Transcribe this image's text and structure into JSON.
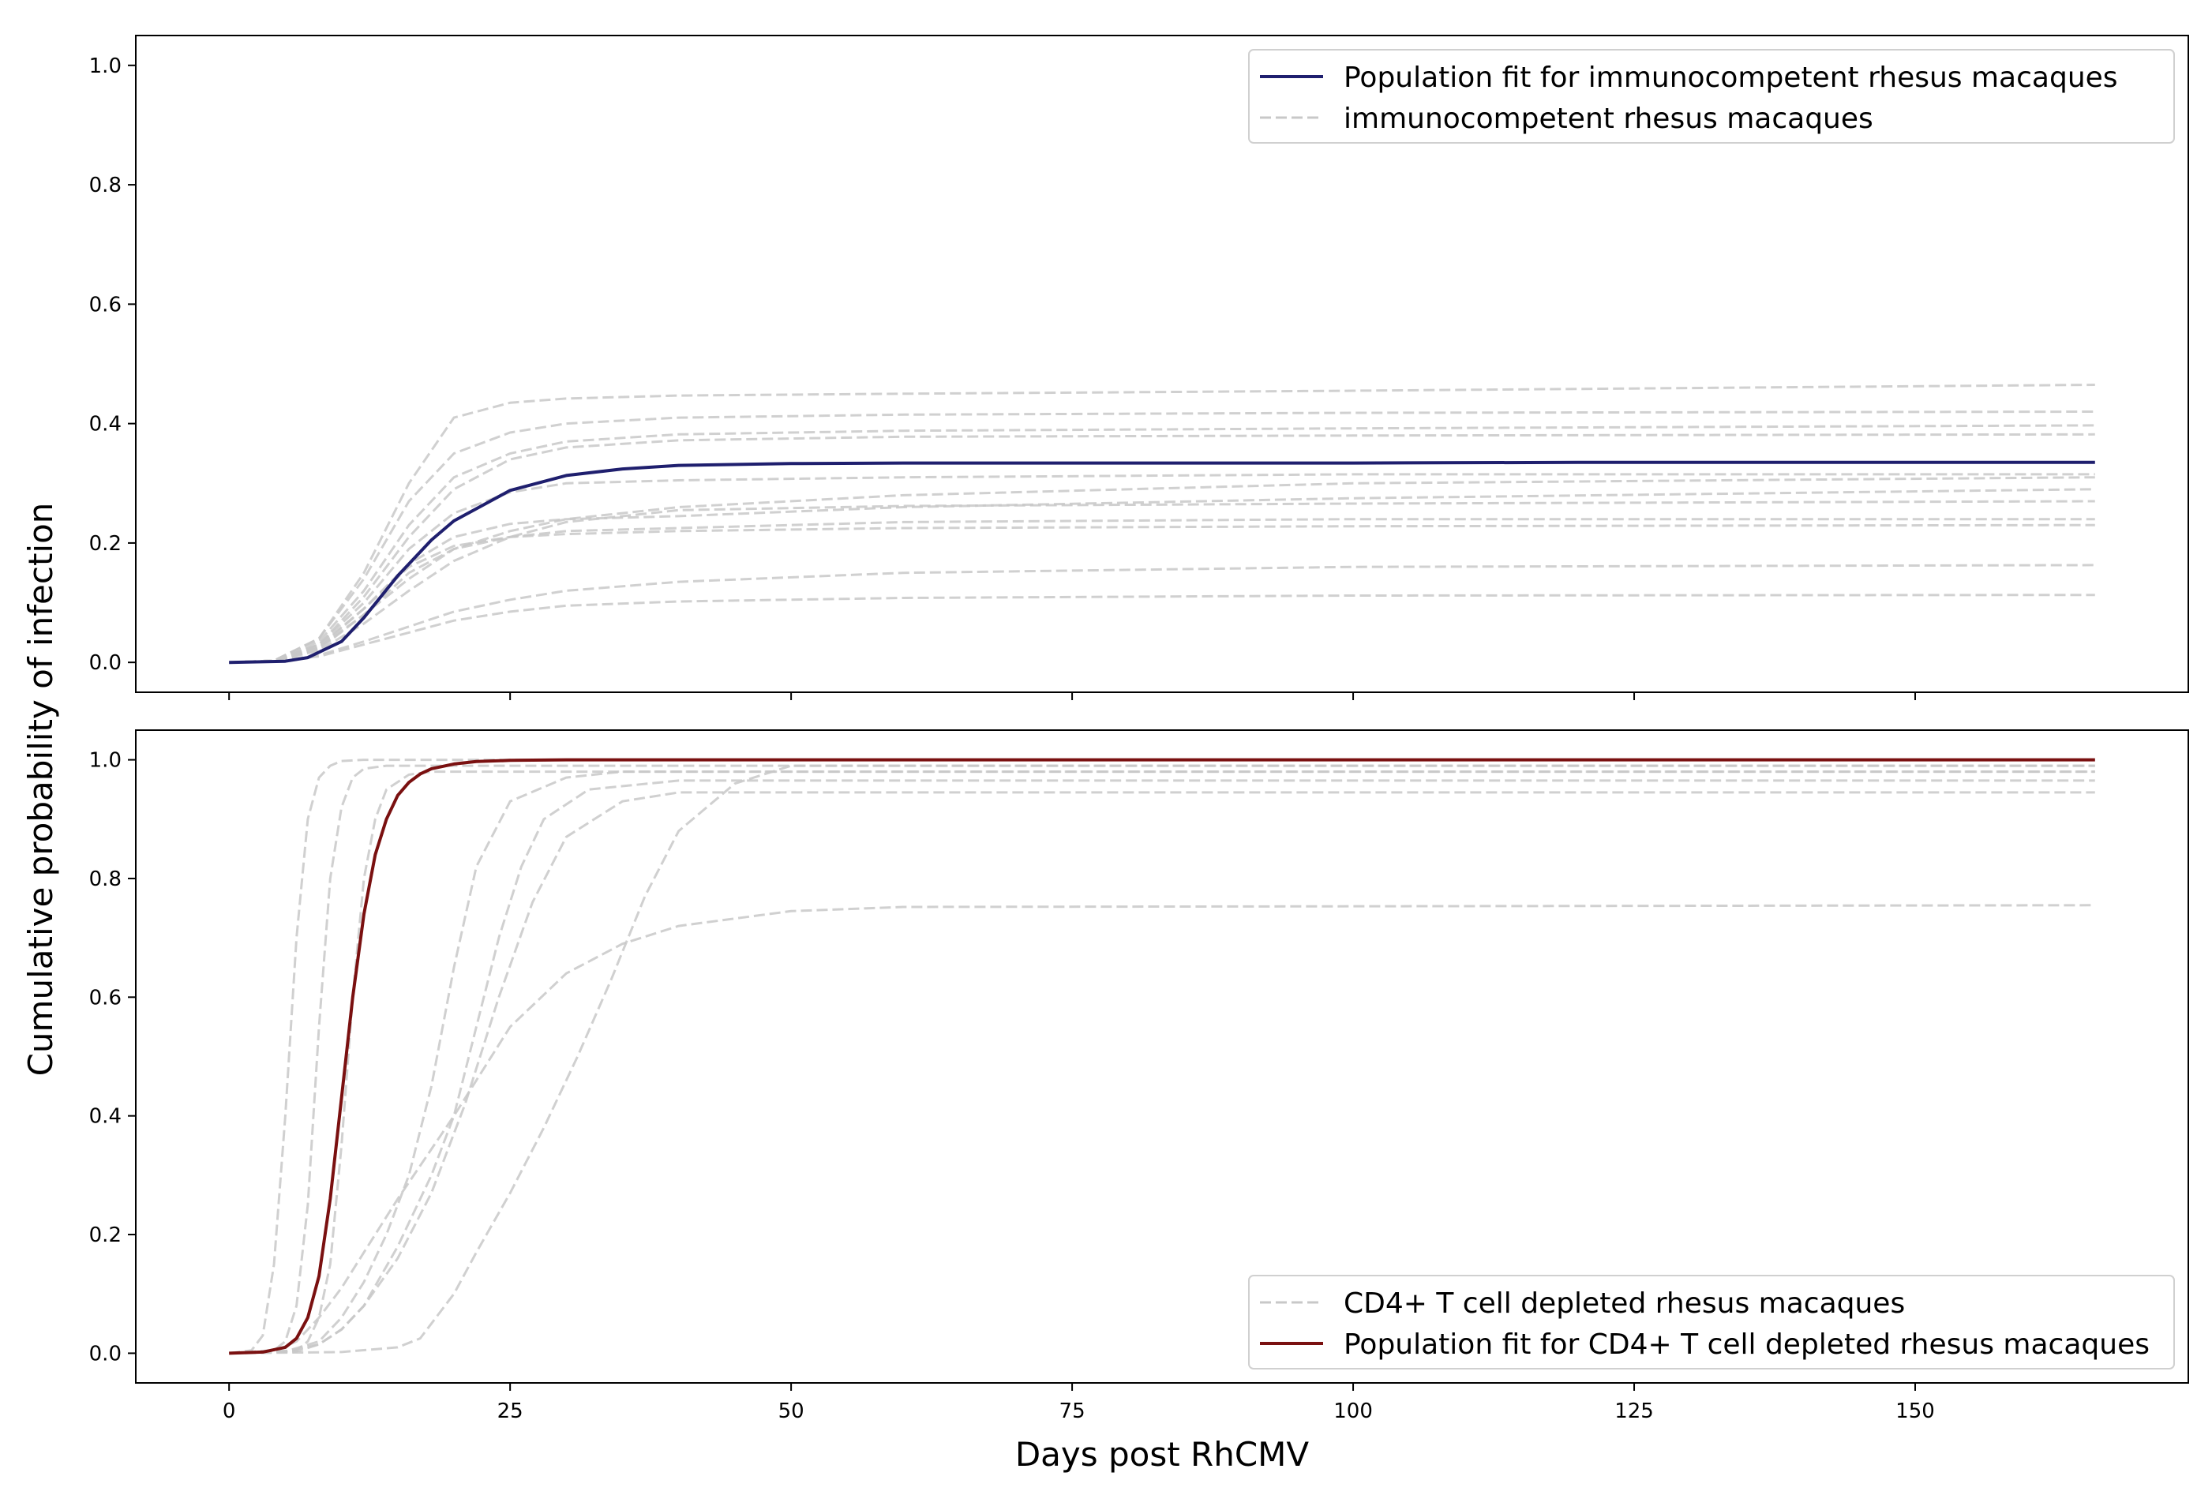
{
  "chart_data": {
    "type": "line",
    "xlabel": "Days post RhCMV",
    "ylabel": "Cumulative probability of infection",
    "xlim": [
      -8.3,
      174.3
    ],
    "xticks": [
      0,
      25,
      50,
      75,
      100,
      125,
      150
    ],
    "colors": {
      "individual": "#c8c8c8",
      "immunocompetent_fit": "#1f1f6e",
      "depleted_fit": "#7a1010"
    },
    "panels": [
      {
        "id": "top",
        "ylim": [
          -0.05,
          1.05
        ],
        "yticks": [
          0.0,
          0.2,
          0.4,
          0.6,
          0.8,
          1.0
        ],
        "legend_position": "upper right",
        "legend": [
          "Population fit for immunocompetent rhesus macaques",
          "immunocompetent rhesus macaques"
        ],
        "fit": {
          "name": "Population fit for immunocompetent rhesus macaques",
          "x": [
            0,
            5,
            7,
            10,
            12,
            15,
            18,
            20,
            25,
            30,
            35,
            40,
            50,
            60,
            80,
            100,
            120,
            140,
            166
          ],
          "y": [
            0,
            0.002,
            0.008,
            0.035,
            0.075,
            0.145,
            0.205,
            0.237,
            0.288,
            0.313,
            0.324,
            0.33,
            0.333,
            0.334,
            0.334,
            0.334,
            0.335,
            0.335,
            0.335
          ]
        },
        "individual_series_name": "immunocompetent rhesus macaques",
        "individuals": [
          {
            "x": [
              0,
              4,
              8,
              12,
              16,
              20,
              25,
              30,
              40,
              60,
              100,
              166
            ],
            "y": [
              0,
              0.003,
              0.04,
              0.15,
              0.3,
              0.41,
              0.435,
              0.442,
              0.447,
              0.45,
              0.455,
              0.465
            ]
          },
          {
            "x": [
              0,
              4,
              8,
              12,
              16,
              20,
              25,
              30,
              40,
              60,
              100,
              166
            ],
            "y": [
              0,
              0.003,
              0.04,
              0.14,
              0.27,
              0.35,
              0.385,
              0.4,
              0.41,
              0.415,
              0.418,
              0.42
            ]
          },
          {
            "x": [
              0,
              4,
              8,
              12,
              16,
              20,
              25,
              30,
              40,
              60,
              100,
              166
            ],
            "y": [
              0,
              0.003,
              0.035,
              0.12,
              0.23,
              0.31,
              0.35,
              0.37,
              0.382,
              0.388,
              0.392,
              0.397
            ]
          },
          {
            "x": [
              0,
              4,
              8,
              12,
              16,
              20,
              25,
              30,
              40,
              60,
              100,
              166
            ],
            "y": [
              0,
              0.003,
              0.03,
              0.11,
              0.21,
              0.29,
              0.34,
              0.36,
              0.372,
              0.378,
              0.38,
              0.382
            ]
          },
          {
            "x": [
              0,
              4,
              8,
              12,
              16,
              20,
              25,
              30,
              40,
              60,
              100,
              166
            ],
            "y": [
              0,
              0.003,
              0.03,
              0.1,
              0.19,
              0.25,
              0.285,
              0.3,
              0.305,
              0.31,
              0.315,
              0.315
            ]
          },
          {
            "x": [
              0,
              4,
              8,
              12,
              16,
              20,
              25,
              30,
              40,
              60,
              100,
              166
            ],
            "y": [
              0,
              0.003,
              0.025,
              0.08,
              0.14,
              0.19,
              0.22,
              0.24,
              0.26,
              0.28,
              0.3,
              0.31
            ]
          },
          {
            "x": [
              0,
              4,
              8,
              12,
              16,
              20,
              25,
              30,
              40,
              60,
              100,
              166
            ],
            "y": [
              0,
              0.003,
              0.028,
              0.09,
              0.165,
              0.21,
              0.232,
              0.24,
              0.245,
              0.26,
              0.275,
              0.29
            ]
          },
          {
            "x": [
              0,
              4,
              8,
              12,
              16,
              20,
              25,
              30,
              40,
              60,
              100,
              166
            ],
            "y": [
              0,
              0.002,
              0.02,
              0.065,
              0.12,
              0.17,
              0.21,
              0.235,
              0.255,
              0.262,
              0.266,
              0.27
            ]
          },
          {
            "x": [
              0,
              4,
              8,
              12,
              16,
              20,
              25,
              30,
              40,
              60,
              100,
              166
            ],
            "y": [
              0,
              0.002,
              0.022,
              0.08,
              0.15,
              0.19,
              0.21,
              0.22,
              0.225,
              0.235,
              0.24,
              0.24
            ]
          },
          {
            "x": [
              0,
              4,
              8,
              12,
              16,
              20,
              25,
              30,
              40,
              60,
              100,
              166
            ],
            "y": [
              0,
              0.002,
              0.025,
              0.09,
              0.16,
              0.195,
              0.21,
              0.215,
              0.22,
              0.225,
              0.228,
              0.23
            ]
          },
          {
            "x": [
              0,
              4,
              8,
              12,
              16,
              20,
              25,
              30,
              40,
              60,
              100,
              166
            ],
            "y": [
              0,
              0.002,
              0.012,
              0.035,
              0.06,
              0.085,
              0.105,
              0.12,
              0.135,
              0.15,
              0.16,
              0.163
            ]
          },
          {
            "x": [
              0,
              4,
              8,
              12,
              16,
              20,
              25,
              30,
              40,
              60,
              100,
              166
            ],
            "y": [
              0,
              0.002,
              0.01,
              0.03,
              0.05,
              0.07,
              0.085,
              0.095,
              0.102,
              0.108,
              0.112,
              0.113
            ]
          }
        ]
      },
      {
        "id": "bottom",
        "ylim": [
          -0.05,
          1.05
        ],
        "yticks": [
          0.0,
          0.2,
          0.4,
          0.6,
          0.8,
          1.0
        ],
        "legend_position": "lower right",
        "legend": [
          "CD4+ T cell depleted rhesus macaques",
          "Population fit for CD4+ T cell depleted rhesus macaques"
        ],
        "fit": {
          "name": "Population fit for CD4+ T cell depleted rhesus macaques",
          "x": [
            0,
            3,
            5,
            6,
            7,
            8,
            9,
            10,
            11,
            12,
            13,
            14,
            15,
            16,
            17,
            18,
            20,
            22,
            25,
            30,
            40,
            166
          ],
          "y": [
            0,
            0.002,
            0.01,
            0.025,
            0.06,
            0.13,
            0.26,
            0.43,
            0.6,
            0.74,
            0.84,
            0.9,
            0.94,
            0.962,
            0.976,
            0.985,
            0.993,
            0.997,
            0.999,
            1.0,
            1.0,
            1.0
          ]
        },
        "individual_series_name": "CD4+ T cell depleted rhesus macaques",
        "individuals": [
          {
            "x": [
              0,
              2,
              3,
              4,
              5,
              6,
              7,
              8,
              9,
              10,
              12,
              166
            ],
            "y": [
              0,
              0.005,
              0.03,
              0.15,
              0.4,
              0.7,
              0.9,
              0.97,
              0.99,
              0.998,
              1.0,
              1.0
            ]
          },
          {
            "x": [
              0,
              4,
              5,
              6,
              7,
              8,
              9,
              10,
              11,
              12,
              14,
              166
            ],
            "y": [
              0,
              0.005,
              0.02,
              0.08,
              0.25,
              0.55,
              0.8,
              0.92,
              0.97,
              0.985,
              0.99,
              0.99
            ]
          },
          {
            "x": [
              0,
              6,
              7,
              8,
              9,
              10,
              11,
              12,
              13,
              14,
              16,
              18,
              20,
              166
            ],
            "y": [
              0,
              0.005,
              0.02,
              0.06,
              0.15,
              0.35,
              0.6,
              0.8,
              0.9,
              0.95,
              0.975,
              0.98,
              0.98,
              0.98
            ]
          },
          {
            "x": [
              0,
              5,
              8,
              10,
              12,
              14,
              16,
              18,
              20,
              22,
              25,
              30,
              35,
              166
            ],
            "y": [
              0,
              0.003,
              0.02,
              0.06,
              0.12,
              0.2,
              0.3,
              0.45,
              0.65,
              0.82,
              0.93,
              0.97,
              0.98,
              0.98
            ]
          },
          {
            "x": [
              0,
              5,
              8,
              10,
              12,
              15,
              18,
              20,
              22,
              24,
              26,
              28,
              32,
              40,
              166
            ],
            "y": [
              0,
              0.003,
              0.015,
              0.04,
              0.08,
              0.18,
              0.3,
              0.4,
              0.55,
              0.7,
              0.82,
              0.9,
              0.95,
              0.965,
              0.965
            ]
          },
          {
            "x": [
              0,
              6,
              8,
              10,
              12,
              15,
              18,
              21,
              24,
              27,
              30,
              35,
              40,
              166
            ],
            "y": [
              0,
              0.003,
              0.015,
              0.04,
              0.08,
              0.16,
              0.27,
              0.42,
              0.6,
              0.76,
              0.87,
              0.93,
              0.945,
              0.945
            ]
          },
          {
            "x": [
              0,
              4,
              6,
              8,
              10,
              12,
              15,
              20,
              25,
              30,
              35,
              40,
              50,
              60,
              166
            ],
            "y": [
              0,
              0.003,
              0.02,
              0.06,
              0.11,
              0.17,
              0.26,
              0.4,
              0.55,
              0.64,
              0.69,
              0.72,
              0.745,
              0.752,
              0.755
            ]
          },
          {
            "x": [
              0,
              10,
              15,
              17,
              18,
              20,
              22,
              25,
              28,
              31,
              34,
              37,
              40,
              45,
              50,
              166
            ],
            "y": [
              0,
              0.002,
              0.01,
              0.025,
              0.05,
              0.1,
              0.17,
              0.27,
              0.38,
              0.5,
              0.63,
              0.77,
              0.88,
              0.96,
              0.99,
              0.99
            ]
          }
        ]
      }
    ]
  }
}
